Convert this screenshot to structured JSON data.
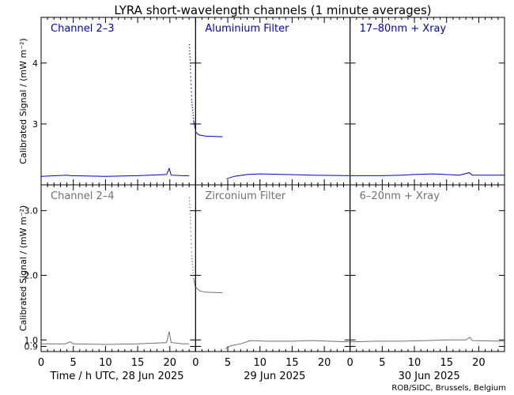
{
  "chart_data": {
    "type": "line",
    "title": "LYRA short-wavelength channels (1 minute averages)",
    "ylabel": "Calibrated Signal / (mW m⁻²)",
    "xlabel_prefix": "Time / h UTC,",
    "days": [
      "28 Jun 2025",
      "29 Jun 2025",
      "30 Jun 2025"
    ],
    "x_ticks": [
      0,
      5,
      10,
      15,
      20
    ],
    "xlim": [
      0,
      24
    ],
    "credit": "ROB/SIDC, Brussels, Belgium",
    "rows": [
      {
        "color": "#0000cc",
        "ylim": [
          2.0,
          4.75
        ],
        "y_ticks": [
          3,
          4
        ],
        "y_tick_labels": [
          "3",
          "4"
        ],
        "panels": [
          {
            "label": "Channel 2–3",
            "baseline": 2.15,
            "points": [
              [
                0,
                2.14
              ],
              [
                4,
                2.16
              ],
              [
                4.6,
                2.15
              ],
              [
                10,
                2.14
              ],
              [
                15,
                2.15
              ],
              [
                19.5,
                2.17
              ],
              [
                19.9,
                2.27
              ],
              [
                20.2,
                2.16
              ],
              [
                22,
                2.15
              ],
              [
                22.99,
                2.15
              ]
            ],
            "gap_start": 23.0,
            "spike_points": [
              [
                23.05,
                4.3
              ],
              [
                23.2,
                3.9
              ],
              [
                23.4,
                3.4
              ],
              [
                23.7,
                3.05
              ],
              [
                24,
                2.9
              ]
            ]
          },
          {
            "label": "Aluminium Filter",
            "points": [
              [
                0,
                2.87
              ],
              [
                0.5,
                2.82
              ],
              [
                1.5,
                2.8
              ],
              [
                4.2,
                2.79
              ]
            ],
            "gap": [
              4.2,
              4.8
            ],
            "points2": [
              [
                4.8,
                2.1
              ],
              [
                6,
                2.14
              ],
              [
                8,
                2.17
              ],
              [
                10,
                2.18
              ],
              [
                14,
                2.17
              ],
              [
                18,
                2.16
              ],
              [
                24,
                2.15
              ]
            ]
          },
          {
            "label": "17–80nm + Xray",
            "points": [
              [
                0,
                2.15
              ],
              [
                5,
                2.15
              ],
              [
                8,
                2.16
              ],
              [
                10,
                2.17
              ],
              [
                13,
                2.18
              ],
              [
                17,
                2.16
              ],
              [
                18.5,
                2.2
              ],
              [
                19,
                2.16
              ],
              [
                24,
                2.16
              ]
            ]
          }
        ]
      },
      {
        "color": "#707070",
        "ylim": [
          0.82,
          3.4
        ],
        "y_ticks": [
          0.9,
          1.0,
          2.0,
          3.0
        ],
        "y_tick_labels": [
          "0.9",
          "1.0",
          "2.0",
          "3.0"
        ],
        "panels": [
          {
            "label": "Channel 2–4",
            "points": [
              [
                0,
                0.94
              ],
              [
                3.8,
                0.94
              ],
              [
                4.5,
                0.97
              ],
              [
                5,
                0.94
              ],
              [
                10,
                0.93
              ],
              [
                15,
                0.94
              ],
              [
                19.5,
                0.96
              ],
              [
                19.9,
                1.13
              ],
              [
                20.2,
                0.96
              ],
              [
                22,
                0.94
              ],
              [
                22.99,
                0.94
              ]
            ],
            "spike_points": [
              [
                23.05,
                3.2
              ],
              [
                23.2,
                2.8
              ],
              [
                23.4,
                2.3
              ],
              [
                23.7,
                1.95
              ],
              [
                24,
                1.8
              ]
            ]
          },
          {
            "label": "Zirconium Filter",
            "points": [
              [
                0,
                1.82
              ],
              [
                0.6,
                1.76
              ],
              [
                1.5,
                1.74
              ],
              [
                4.2,
                1.73
              ]
            ],
            "gap": [
              4.2,
              4.6
            ],
            "points2": [
              [
                4.6,
                0.86
              ],
              [
                5.5,
                0.91
              ],
              [
                7,
                0.94
              ],
              [
                8.5,
                0.99
              ],
              [
                11,
                0.98
              ],
              [
                15,
                0.98
              ],
              [
                18,
                0.99
              ],
              [
                24,
                0.97
              ]
            ]
          },
          {
            "label": "6–20nm + Xray",
            "points": [
              [
                0,
                0.97
              ],
              [
                4,
                0.98
              ],
              [
                8,
                0.98
              ],
              [
                12,
                0.99
              ],
              [
                15,
                1.0
              ],
              [
                18,
                1.0
              ],
              [
                18.6,
                1.04
              ],
              [
                19,
                0.99
              ],
              [
                24,
                0.98
              ]
            ]
          }
        ]
      }
    ]
  }
}
